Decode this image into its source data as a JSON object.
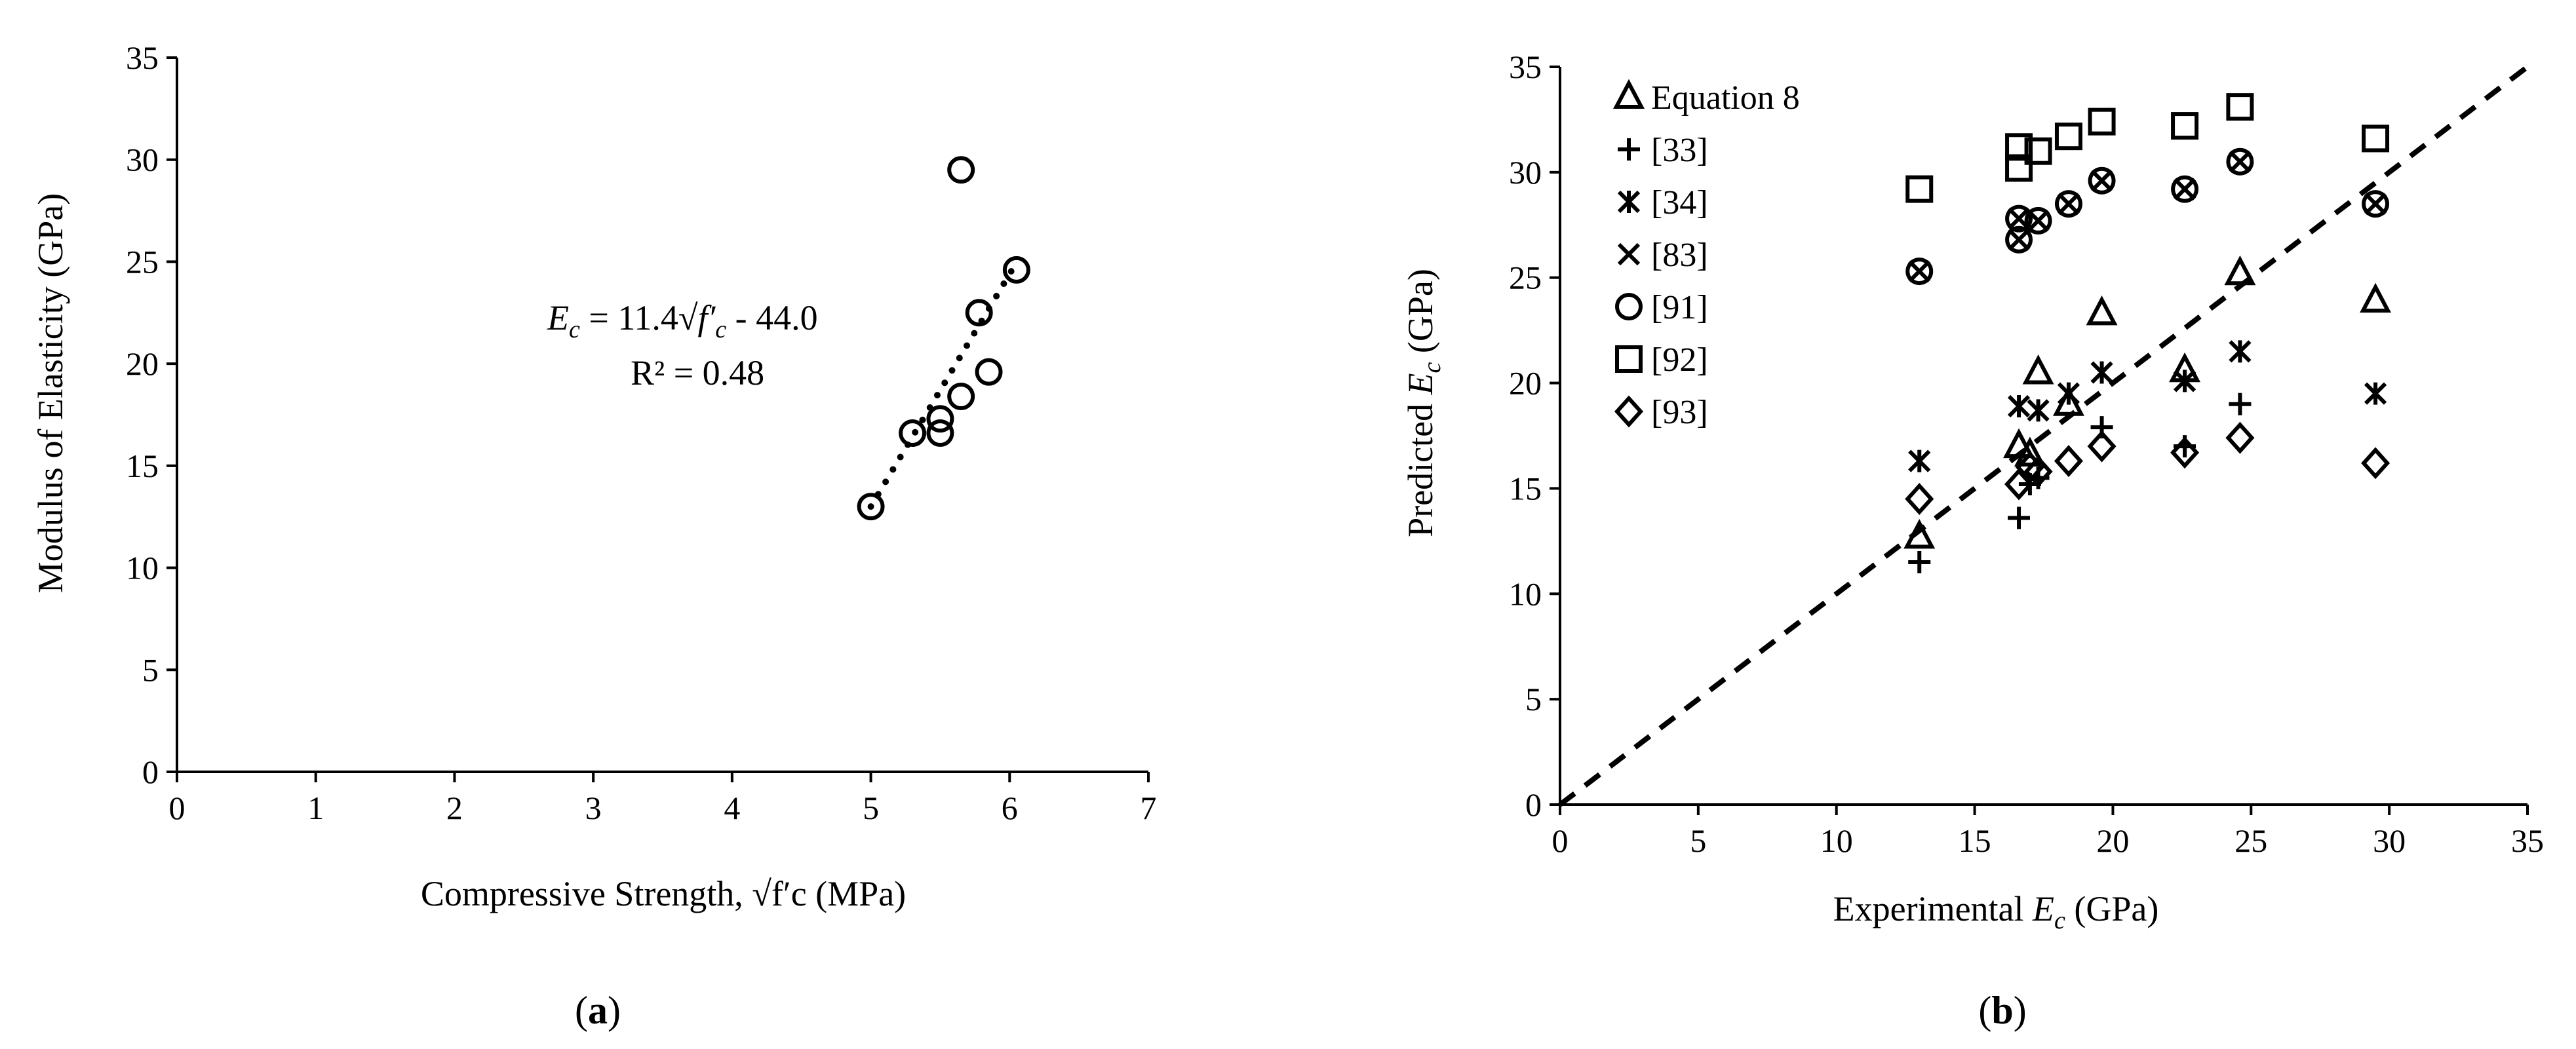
{
  "chart_data": [
    {
      "type": "scatter",
      "panel_label": "a",
      "xlabel": "Compressive Strength, √f′c (MPa)",
      "ylabel": "Modulus of Elasticity (GPa)",
      "xlim": [
        0,
        7
      ],
      "ylim": [
        0,
        35
      ],
      "xticks": [
        0,
        1,
        2,
        3,
        4,
        5,
        6,
        7
      ],
      "yticks": [
        0,
        5,
        10,
        15,
        20,
        25,
        30,
        35
      ],
      "grid": false,
      "series": [
        {
          "marker": "circle",
          "points": [
            [
              5.0,
              13.0
            ],
            [
              5.3,
              16.6
            ],
            [
              5.5,
              16.6
            ],
            [
              5.5,
              17.3
            ],
            [
              5.65,
              18.4
            ],
            [
              5.65,
              29.5
            ],
            [
              5.78,
              22.5
            ],
            [
              5.85,
              19.6
            ],
            [
              6.05,
              24.6
            ]
          ]
        }
      ],
      "trendline": {
        "style": "dotted",
        "slope": 11.4,
        "intercept": -44.0,
        "x_range": [
          5.0,
          6.05
        ],
        "equation_parts": {
          "e": "E",
          "e_sub": "c",
          "eq_mid": " = 11.4√",
          "f": "f′",
          "f_sub": "c",
          "eq_tail": " - 44.0"
        },
        "r2_text": "R² = 0.48"
      }
    },
    {
      "type": "scatter",
      "panel_label": "b",
      "xlabel": "Experimental Ec (GPa)",
      "xlabel_parts": {
        "pre": "Experimental ",
        "var": "E",
        "sub": "c",
        "post": " (GPa)"
      },
      "ylabel": "Predicted Ec (GPa)",
      "ylabel_parts": {
        "pre": "Predicted ",
        "var": "E",
        "sub": "c",
        "post": " (GPa)"
      },
      "xlim": [
        0,
        35
      ],
      "ylim": [
        0,
        35
      ],
      "xticks": [
        0,
        5,
        10,
        15,
        20,
        25,
        30,
        35
      ],
      "yticks": [
        0,
        5,
        10,
        15,
        20,
        25,
        30,
        35
      ],
      "grid": false,
      "legend_position": "top-left",
      "reference_line": {
        "style": "dashed",
        "from": [
          0,
          0
        ],
        "to": [
          35,
          35
        ]
      },
      "series": [
        {
          "name": "Equation 8",
          "marker": "triangle",
          "points": [
            [
              13.0,
              12.7
            ],
            [
              16.6,
              17.0
            ],
            [
              17.0,
              16.6
            ],
            [
              17.3,
              20.5
            ],
            [
              18.4,
              19.0
            ],
            [
              19.6,
              23.3
            ],
            [
              22.6,
              20.6
            ],
            [
              24.6,
              25.2
            ],
            [
              29.5,
              23.9
            ]
          ]
        },
        {
          "name": "[33]",
          "marker": "plus",
          "points": [
            [
              13.0,
              11.5
            ],
            [
              16.6,
              13.6
            ],
            [
              17.0,
              15.2
            ],
            [
              17.3,
              15.5
            ],
            [
              19.6,
              17.9
            ],
            [
              22.6,
              17.0
            ],
            [
              24.6,
              19.0
            ]
          ]
        },
        {
          "name": "[34]",
          "marker": "asterisk",
          "points": [
            [
              13.0,
              16.3
            ],
            [
              16.6,
              18.9
            ],
            [
              17.3,
              18.7
            ],
            [
              18.4,
              19.5
            ],
            [
              19.6,
              20.5
            ],
            [
              22.6,
              20.1
            ],
            [
              24.6,
              21.5
            ],
            [
              29.5,
              19.5
            ]
          ]
        },
        {
          "name": "[83]",
          "marker": "x",
          "points": [
            [
              13.0,
              25.3
            ],
            [
              16.6,
              27.8
            ],
            [
              16.6,
              26.8
            ],
            [
              17.3,
              27.7
            ],
            [
              18.4,
              28.5
            ],
            [
              19.6,
              29.6
            ],
            [
              22.6,
              29.2
            ],
            [
              24.6,
              30.5
            ],
            [
              29.5,
              28.5
            ]
          ]
        },
        {
          "name": "[91]",
          "marker": "circle",
          "points": [
            [
              13.0,
              25.3
            ],
            [
              16.6,
              27.8
            ],
            [
              16.6,
              26.8
            ],
            [
              17.3,
              27.7
            ],
            [
              18.4,
              28.5
            ],
            [
              19.6,
              29.6
            ],
            [
              22.6,
              29.2
            ],
            [
              24.6,
              30.5
            ],
            [
              29.5,
              28.5
            ]
          ]
        },
        {
          "name": "[92]",
          "marker": "square",
          "points": [
            [
              13.0,
              29.2
            ],
            [
              16.6,
              31.2
            ],
            [
              16.6,
              30.2
            ],
            [
              17.3,
              31.0
            ],
            [
              18.4,
              31.7
            ],
            [
              19.6,
              32.4
            ],
            [
              22.6,
              32.2
            ],
            [
              24.6,
              33.1
            ],
            [
              29.5,
              31.6
            ]
          ]
        },
        {
          "name": "[93]",
          "marker": "diamond",
          "points": [
            [
              13.0,
              14.5
            ],
            [
              16.6,
              15.2
            ],
            [
              17.0,
              16.0
            ],
            [
              17.3,
              15.8
            ],
            [
              18.4,
              16.3
            ],
            [
              19.6,
              17.0
            ],
            [
              22.6,
              16.7
            ],
            [
              24.6,
              17.4
            ],
            [
              29.5,
              16.2
            ]
          ]
        }
      ]
    }
  ]
}
